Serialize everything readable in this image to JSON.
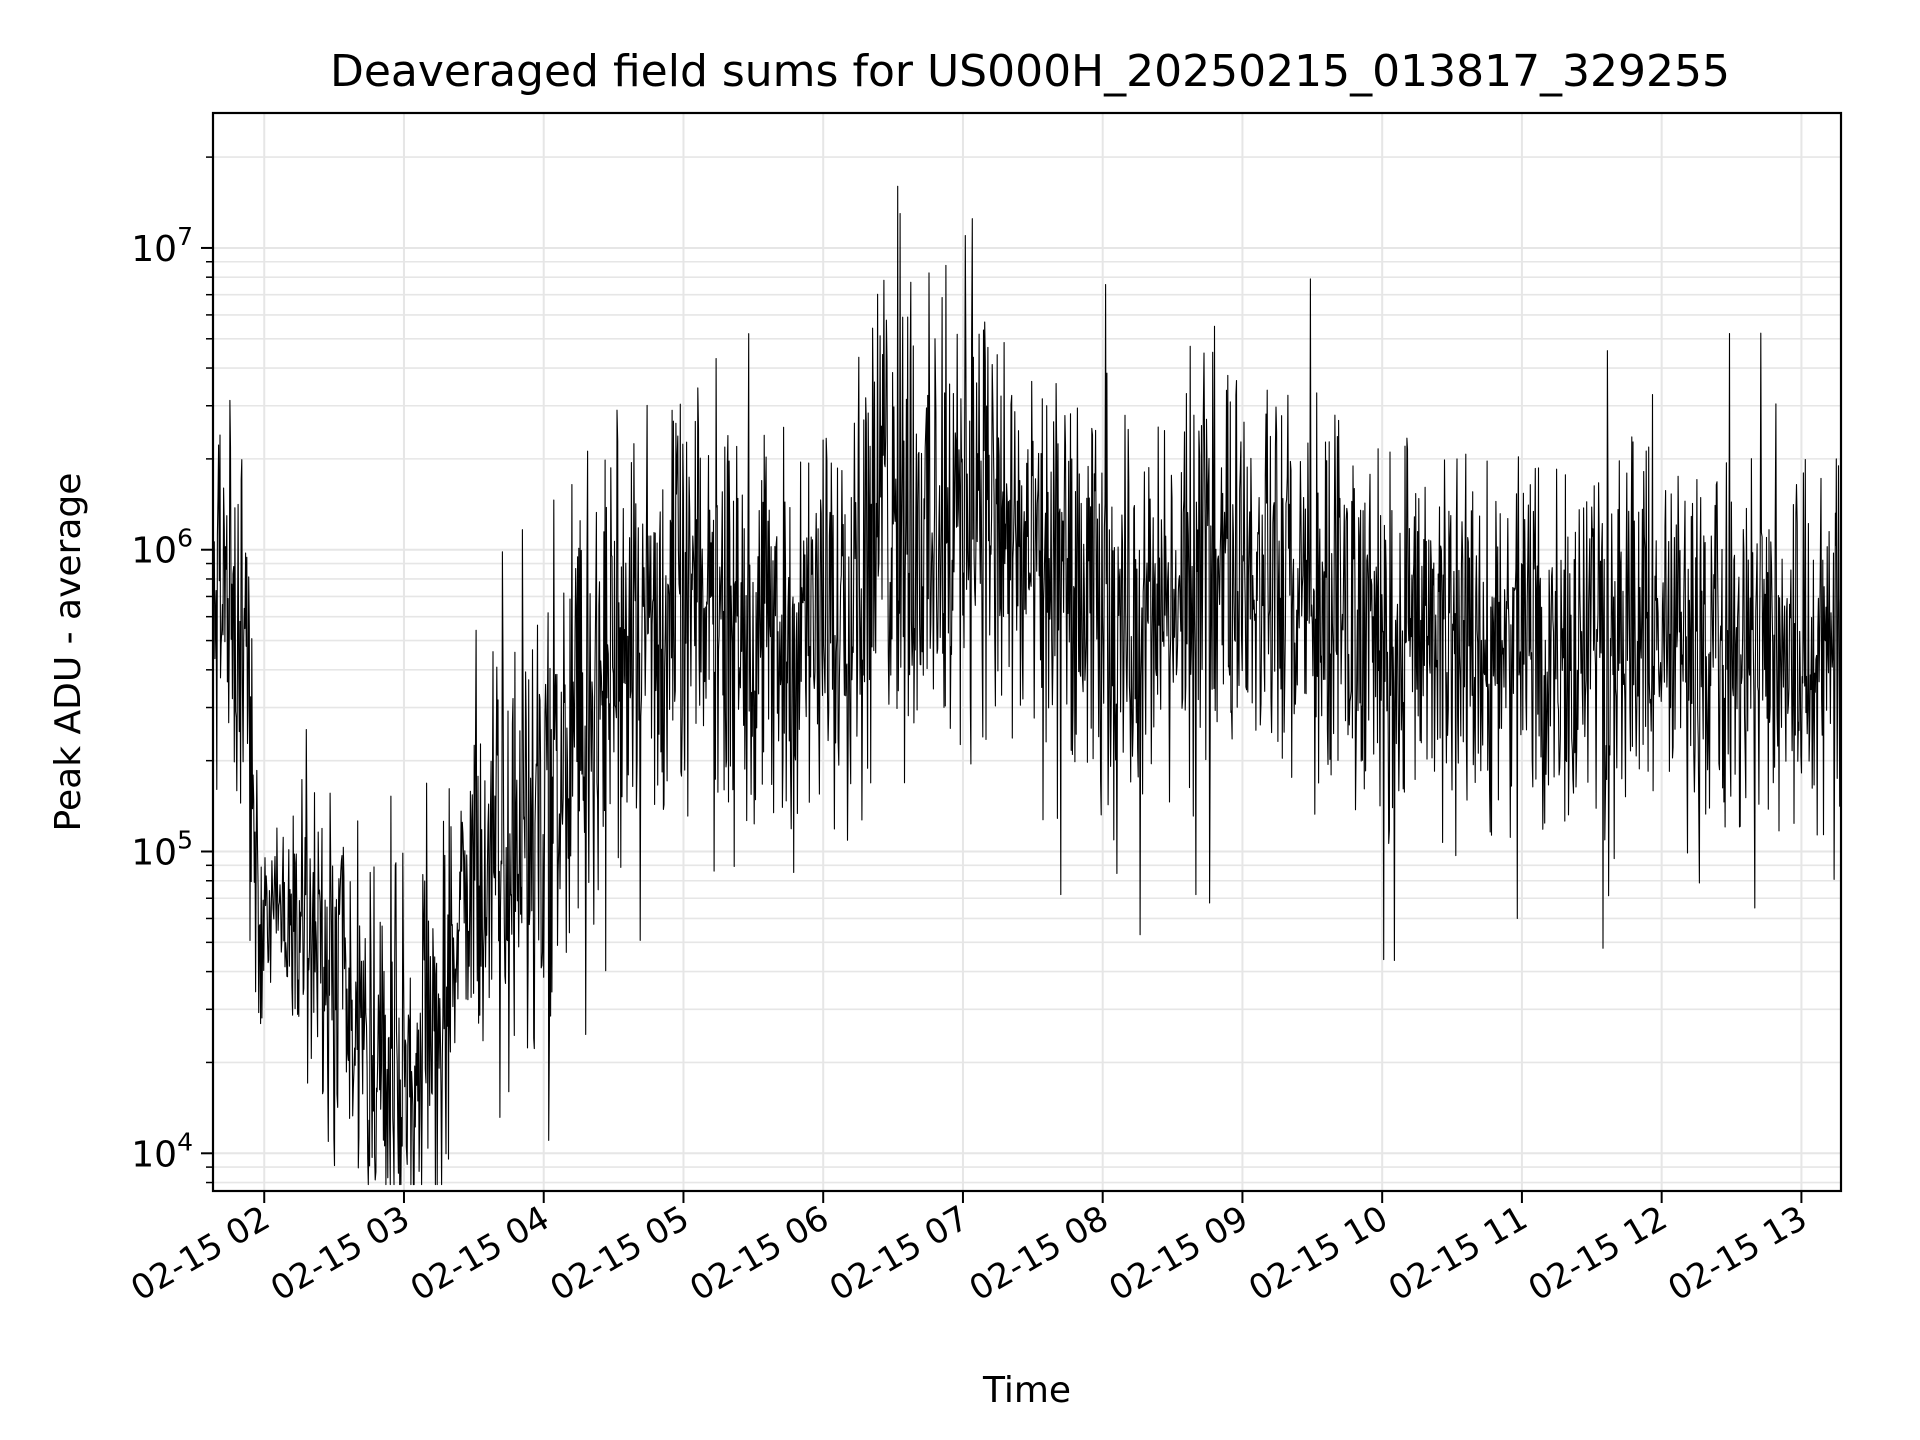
{
  "chart_data": {
    "type": "line",
    "title": "Deaveraged field sums for US000H_20250215_013817_329255",
    "xlabel": "Time",
    "ylabel": "Peak ADU - average",
    "yscale": "log",
    "ylim": [
      7500,
      28000000
    ],
    "xlim": [
      "2025-02-15 01:38",
      "2025-02-15 13:17"
    ],
    "grid": true,
    "line_color": "#000000",
    "grid_color": "#e6e6e6",
    "x_ticks": [
      {
        "value": "2025-02-15 02:00",
        "label": "02-15 02"
      },
      {
        "value": "2025-02-15 03:00",
        "label": "02-15 03"
      },
      {
        "value": "2025-02-15 04:00",
        "label": "02-15 04"
      },
      {
        "value": "2025-02-15 05:00",
        "label": "02-15 05"
      },
      {
        "value": "2025-02-15 06:00",
        "label": "02-15 06"
      },
      {
        "value": "2025-02-15 07:00",
        "label": "02-15 07"
      },
      {
        "value": "2025-02-15 08:00",
        "label": "02-15 08"
      },
      {
        "value": "2025-02-15 09:00",
        "label": "02-15 09"
      },
      {
        "value": "2025-02-15 10:00",
        "label": "02-15 10"
      },
      {
        "value": "2025-02-15 11:00",
        "label": "02-15 11"
      },
      {
        "value": "2025-02-15 12:00",
        "label": "02-15 12"
      },
      {
        "value": "2025-02-15 13:00",
        "label": "02-15 13"
      }
    ],
    "y_ticks": [
      {
        "value": 10000,
        "base": "10",
        "exp": "4"
      },
      {
        "value": 100000,
        "base": "10",
        "exp": "5"
      },
      {
        "value": 1000000,
        "base": "10",
        "exp": "6"
      },
      {
        "value": 10000000,
        "base": "10",
        "exp": "7"
      }
    ],
    "series": [
      {
        "note_envelope": "signal envelope estimated from the plot (center and spread per time point)",
        "x": [
          "2025-02-15 01:38",
          "2025-02-15 01:45",
          "2025-02-15 01:52",
          "2025-02-15 01:58",
          "2025-02-15 02:05",
          "2025-02-15 02:15",
          "2025-02-15 02:25",
          "2025-02-15 02:35",
          "2025-02-15 02:45",
          "2025-02-15 02:55",
          "2025-02-15 03:05",
          "2025-02-15 03:15",
          "2025-02-15 03:25",
          "2025-02-15 03:35",
          "2025-02-15 03:45",
          "2025-02-15 03:55",
          "2025-02-15 04:05",
          "2025-02-15 04:15",
          "2025-02-15 04:25",
          "2025-02-15 04:35",
          "2025-02-15 04:45",
          "2025-02-15 04:55",
          "2025-02-15 05:10",
          "2025-02-15 05:25",
          "2025-02-15 05:40",
          "2025-02-15 05:55",
          "2025-02-15 06:10",
          "2025-02-15 06:25",
          "2025-02-15 06:35",
          "2025-02-15 06:45",
          "2025-02-15 06:55",
          "2025-02-15 07:05",
          "2025-02-15 07:15",
          "2025-02-15 07:30",
          "2025-02-15 07:45",
          "2025-02-15 08:00",
          "2025-02-15 08:20",
          "2025-02-15 08:40",
          "2025-02-15 08:50",
          "2025-02-15 09:00",
          "2025-02-15 09:20",
          "2025-02-15 09:40",
          "2025-02-15 10:00",
          "2025-02-15 10:30",
          "2025-02-15 11:00",
          "2025-02-15 11:30",
          "2025-02-15 12:00",
          "2025-02-15 12:30",
          "2025-02-15 13:00",
          "2025-02-15 13:17"
        ],
        "center": [
          700000,
          600000,
          300000,
          60000,
          70000,
          70000,
          40000,
          25000,
          20000,
          20000,
          20000,
          25000,
          60000,
          80000,
          90000,
          120000,
          150000,
          250000,
          350000,
          500000,
          600000,
          600000,
          650000,
          600000,
          500000,
          450000,
          800000,
          1200000,
          1500000,
          1000000,
          900000,
          1800000,
          1000000,
          800000,
          700000,
          600000,
          550000,
          700000,
          1000000,
          1000000,
          700000,
          550000,
          500000,
          500000,
          450000,
          500000,
          500000,
          450000,
          500000,
          550000
        ],
        "spread": [
          3,
          3,
          3,
          2,
          1.5,
          2,
          3,
          3,
          3,
          3,
          3,
          3,
          2,
          3,
          4,
          4,
          4,
          4,
          4,
          3.5,
          3.5,
          3,
          3,
          3,
          3,
          3,
          4,
          4,
          4,
          4,
          4,
          4,
          3.5,
          3,
          3,
          3,
          3,
          3,
          3,
          3,
          3,
          3,
          3,
          3,
          3,
          3,
          3,
          3,
          3,
          3
        ]
      }
    ],
    "notable_peaks": [
      {
        "x": "2025-02-15 06:32",
        "y": 16000000
      },
      {
        "x": "2025-02-15 06:33",
        "y": 13000000
      },
      {
        "x": "2025-02-15 07:04",
        "y": 12500000
      },
      {
        "x": "2025-02-15 07:01",
        "y": 11000000
      },
      {
        "x": "2025-02-15 06:48",
        "y": 5000000
      },
      {
        "x": "2025-02-15 05:28",
        "y": 5200000
      },
      {
        "x": "2025-02-15 05:14",
        "y": 4300000
      },
      {
        "x": "2025-02-15 08:48",
        "y": 5500000
      },
      {
        "x": "2025-02-15 01:41",
        "y": 2400000
      },
      {
        "x": "2025-02-15 13:15",
        "y": 2000000
      }
    ],
    "notable_troughs": [
      {
        "x": "2025-02-15 03:01",
        "y": 10500.0
      },
      {
        "x": "2025-02-15 02:50",
        "y": 14000
      },
      {
        "x": "2025-02-15 03:45",
        "y": 16000
      },
      {
        "x": "2025-02-15 07:42",
        "y": 72000
      },
      {
        "x": "2025-02-15 08:40",
        "y": 72000
      },
      {
        "x": "2025-02-15 10:58",
        "y": 60000
      },
      {
        "x": "2025-02-15 12:40",
        "y": 65000
      }
    ]
  }
}
